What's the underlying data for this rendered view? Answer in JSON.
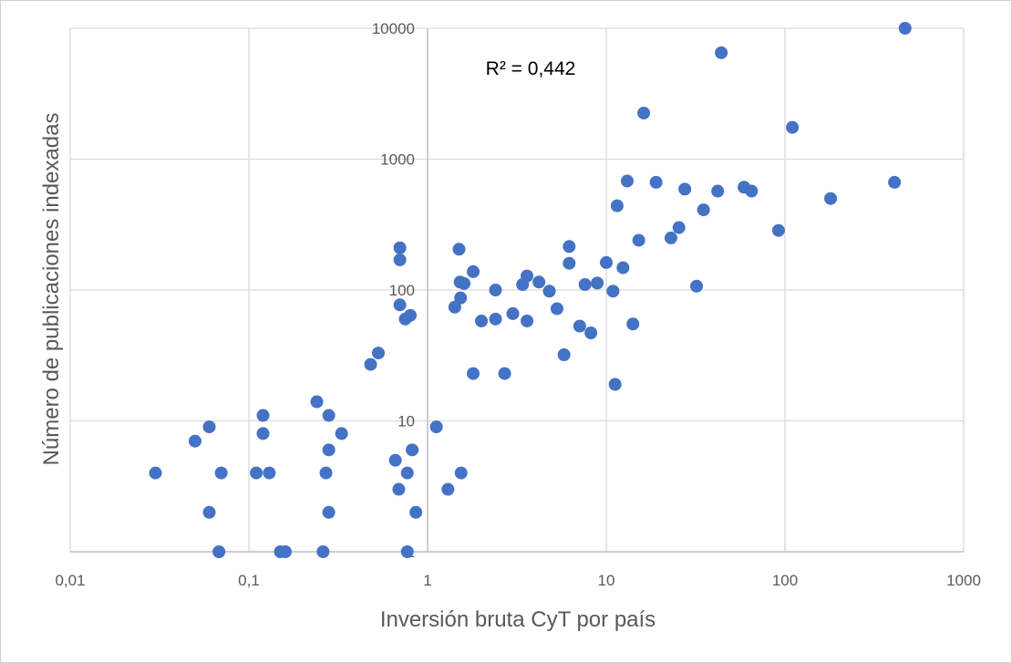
{
  "chart_data": {
    "type": "scatter",
    "title": "",
    "xlabel": "Inversión bruta CyT por país",
    "ylabel": "Número de publicaciones indexadas",
    "xscale": "log",
    "yscale": "log",
    "xlim": [
      0.01,
      1000
    ],
    "ylim": [
      1,
      10000
    ],
    "x_ticks": [
      0.01,
      0.1,
      1,
      10,
      100,
      1000
    ],
    "x_tick_labels": [
      "0,01",
      "0,1",
      "1",
      "10",
      "100",
      "1000"
    ],
    "y_ticks": [
      1,
      10,
      100,
      1000,
      10000
    ],
    "y_tick_labels": [
      "1",
      "10",
      "100",
      "1000",
      "10000"
    ],
    "grid": true,
    "legend": "none",
    "annotation": "R² = 0,442",
    "colors": {
      "marker": "#4472C4",
      "grid": "#d9d9d9",
      "axis": "#bfbfbf",
      "text": "#595959"
    },
    "series": [
      {
        "points": [
          [
            0.03,
            4
          ],
          [
            0.05,
            7
          ],
          [
            0.06,
            9
          ],
          [
            0.06,
            2
          ],
          [
            0.068,
            1
          ],
          [
            0.07,
            4
          ],
          [
            0.11,
            4
          ],
          [
            0.12,
            11
          ],
          [
            0.12,
            8
          ],
          [
            0.13,
            4
          ],
          [
            0.15,
            1
          ],
          [
            0.16,
            1
          ],
          [
            0.24,
            14
          ],
          [
            0.26,
            1
          ],
          [
            0.27,
            4
          ],
          [
            0.28,
            11
          ],
          [
            0.28,
            6
          ],
          [
            0.28,
            2
          ],
          [
            0.33,
            8
          ],
          [
            0.48,
            27
          ],
          [
            0.53,
            33
          ],
          [
            0.66,
            5
          ],
          [
            0.69,
            3
          ],
          [
            0.7,
            210
          ],
          [
            0.7,
            170
          ],
          [
            0.7,
            77
          ],
          [
            0.75,
            60
          ],
          [
            0.77,
            4
          ],
          [
            0.77,
            1
          ],
          [
            0.8,
            64
          ],
          [
            0.82,
            6
          ],
          [
            0.86,
            2
          ],
          [
            1.12,
            9
          ],
          [
            1.3,
            3
          ],
          [
            1.42,
            74
          ],
          [
            1.5,
            205
          ],
          [
            1.52,
            115
          ],
          [
            1.53,
            87
          ],
          [
            1.54,
            4
          ],
          [
            1.6,
            112
          ],
          [
            1.8,
            138
          ],
          [
            1.8,
            23
          ],
          [
            2.0,
            58
          ],
          [
            2.4,
            60
          ],
          [
            2.4,
            100
          ],
          [
            2.7,
            23
          ],
          [
            3.0,
            66
          ],
          [
            3.4,
            110
          ],
          [
            3.6,
            58
          ],
          [
            3.6,
            128
          ],
          [
            4.2,
            115
          ],
          [
            4.8,
            98
          ],
          [
            5.3,
            72
          ],
          [
            5.8,
            32
          ],
          [
            6.2,
            215
          ],
          [
            6.2,
            160
          ],
          [
            7.1,
            53
          ],
          [
            7.6,
            110
          ],
          [
            8.2,
            47
          ],
          [
            8.9,
            113
          ],
          [
            10.0,
            162
          ],
          [
            10.9,
            98
          ],
          [
            11.2,
            19
          ],
          [
            11.5,
            440
          ],
          [
            12.4,
            148
          ],
          [
            13.1,
            680
          ],
          [
            14.1,
            55
          ],
          [
            15.2,
            240
          ],
          [
            16.2,
            2250
          ],
          [
            19.0,
            665
          ],
          [
            23.0,
            250
          ],
          [
            25.5,
            300
          ],
          [
            27.5,
            590
          ],
          [
            32.0,
            107
          ],
          [
            35.0,
            410
          ],
          [
            42.0,
            570
          ],
          [
            44.0,
            6500
          ],
          [
            59.0,
            610
          ],
          [
            65.0,
            570
          ],
          [
            92.0,
            285
          ],
          [
            110.0,
            1750
          ],
          [
            180.0,
            500
          ],
          [
            410.0,
            665
          ],
          [
            470.0,
            10000
          ]
        ]
      }
    ]
  }
}
